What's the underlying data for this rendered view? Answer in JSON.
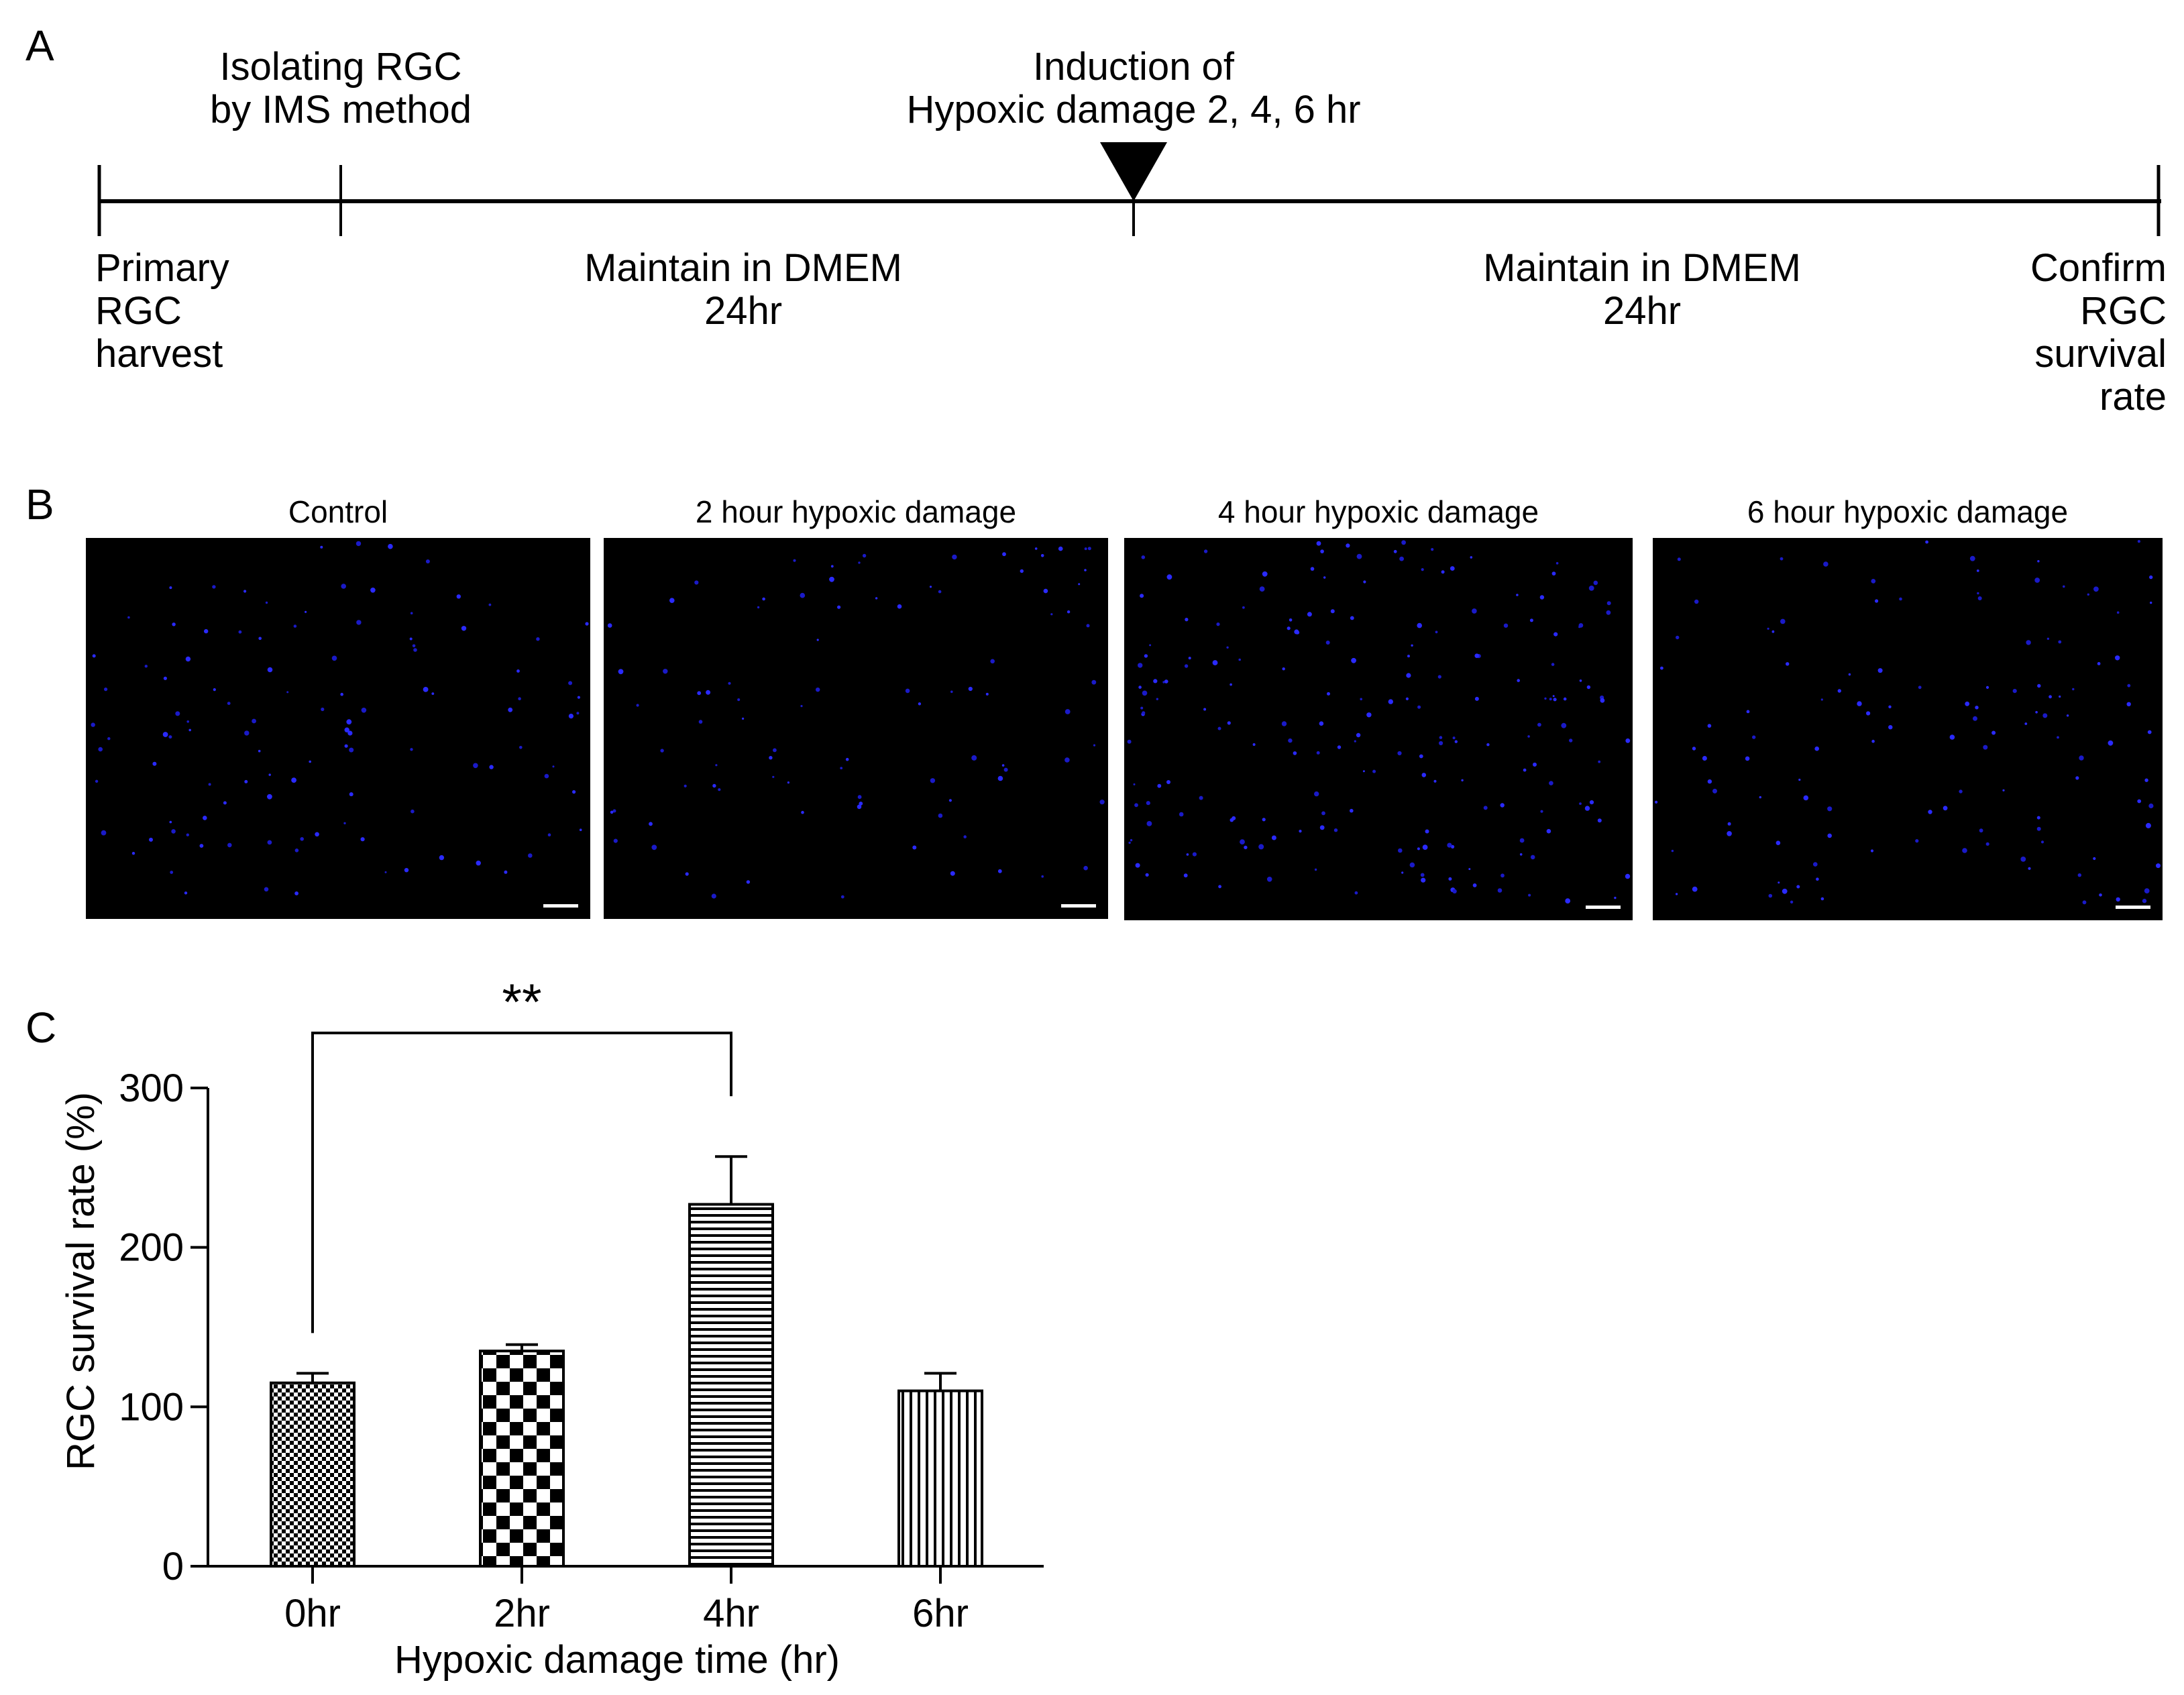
{
  "panel_a": {
    "label": "A",
    "above": [
      {
        "text": "Isolating RGC\nby IMS method"
      },
      {
        "text": "Induction of\nHypoxic damage 2, 4, 6 hr"
      }
    ],
    "below": [
      {
        "text": "Primary\nRGC\nharvest"
      },
      {
        "text": "Maintain in DMEM\n24hr"
      },
      {
        "text": "Maintain in DMEM\n24hr"
      },
      {
        "text": "Confirm\nRGC\nsurvival\nrate"
      }
    ]
  },
  "panel_b": {
    "label": "B",
    "images": [
      {
        "title": "Control"
      },
      {
        "title": "2 hour hypoxic damage"
      },
      {
        "title": "4 hour hypoxic damage"
      },
      {
        "title": "6 hour hypoxic damage"
      }
    ]
  },
  "panel_c": {
    "label": "C"
  },
  "chart_data": {
    "type": "bar",
    "categories": [
      "0hr",
      "2hr",
      "4hr",
      "6hr"
    ],
    "values": [
      115,
      135,
      227,
      110
    ],
    "error_upper": [
      6,
      4,
      30,
      11
    ],
    "xlabel": "Hypoxic damage time (hr)",
    "ylabel": "RGC survival rate (%)",
    "ylim": [
      0,
      300
    ],
    "yticks": [
      0,
      100,
      200,
      300
    ],
    "patterns": [
      "fine-checker",
      "large-checker",
      "horizontal-lines",
      "vertical-lines"
    ],
    "significance": {
      "from": "0hr",
      "to": "4hr",
      "label": "**"
    },
    "grid": false
  }
}
